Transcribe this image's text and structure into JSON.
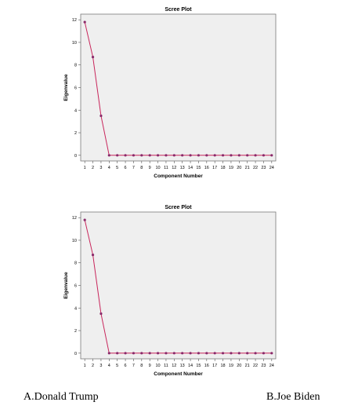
{
  "chart_data": [
    {
      "type": "line",
      "title": "Scree Plot",
      "xlabel": "Component Number",
      "ylabel": "Eigenvalue",
      "x": [
        1,
        2,
        3,
        4,
        5,
        6,
        7,
        8,
        9,
        10,
        11,
        12,
        13,
        14,
        15,
        16,
        17,
        18,
        19,
        20,
        21,
        22,
        23,
        24
      ],
      "values": [
        11.8,
        8.7,
        3.5,
        0,
        0,
        0,
        0,
        0,
        0,
        0,
        0,
        0,
        0,
        0,
        0,
        0,
        0,
        0,
        0,
        0,
        0,
        0,
        0,
        0
      ],
      "yticks": [
        0,
        2,
        4,
        6,
        8,
        10,
        12
      ],
      "xlim": [
        0.5,
        24.5
      ],
      "ylim": [
        -0.5,
        12.5
      ],
      "grid": false,
      "line_color": "#c8245a",
      "marker_color": "#8a2a6a"
    },
    {
      "type": "line",
      "title": "Scree Plot",
      "xlabel": "Component Number",
      "ylabel": "Eigenvalue",
      "x": [
        1,
        2,
        3,
        4,
        5,
        6,
        7,
        8,
        9,
        10,
        11,
        12,
        13,
        14,
        15,
        16,
        17,
        18,
        19,
        20,
        21,
        22,
        23,
        24
      ],
      "values": [
        11.8,
        8.7,
        3.5,
        0,
        0,
        0,
        0,
        0,
        0,
        0,
        0,
        0,
        0,
        0,
        0,
        0,
        0,
        0,
        0,
        0,
        0,
        0,
        0,
        0
      ],
      "yticks": [
        0,
        2,
        4,
        6,
        8,
        10,
        12
      ],
      "xlim": [
        0.5,
        24.5
      ],
      "ylim": [
        -0.5,
        12.5
      ],
      "grid": false,
      "line_color": "#c8245a",
      "marker_color": "#8a2a6a"
    }
  ],
  "captions": {
    "a": "A.Donald Trump",
    "b": "B.Joe Biden"
  }
}
